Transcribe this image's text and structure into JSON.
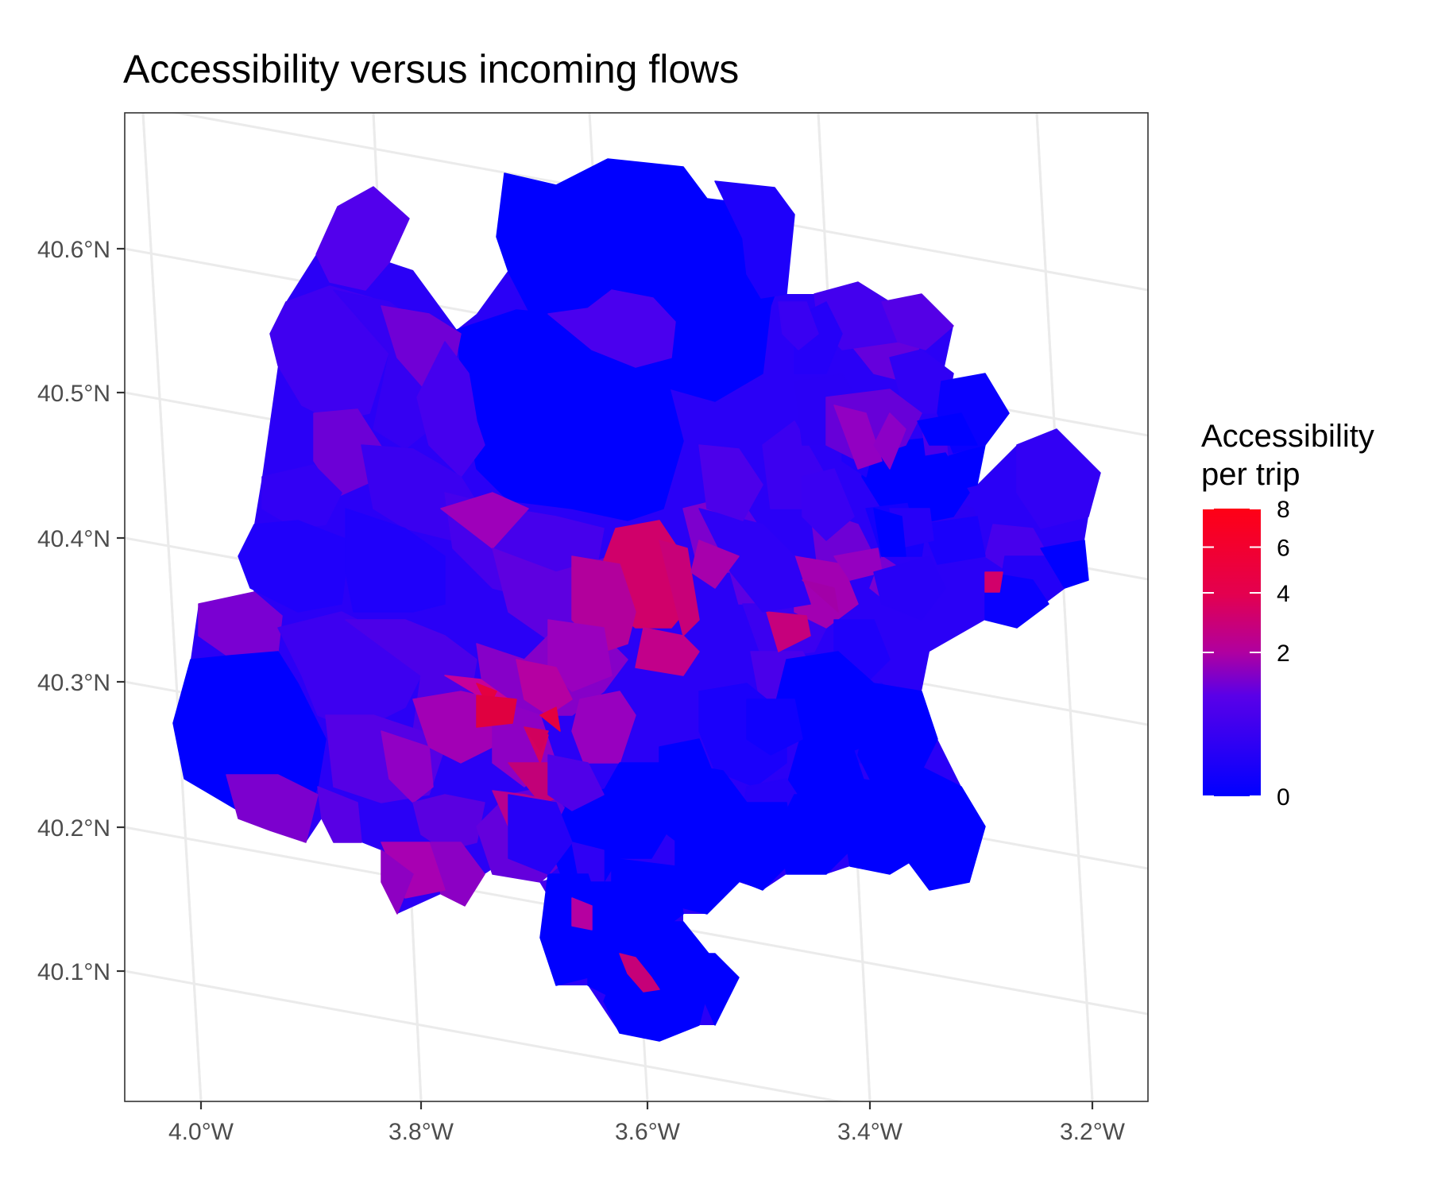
{
  "title": "Accessibility versus incoming flows",
  "colors": {
    "low": "#0000FF",
    "high": "#FF0000",
    "graticule": "#EBEBEB",
    "panel_border": "#333333"
  },
  "axes": {
    "x_ticks": [
      "4.0°W",
      "3.8°W",
      "3.6°W",
      "3.4°W",
      "3.2°W"
    ],
    "y_ticks": [
      "40.6°N",
      "40.5°N",
      "40.4°N",
      "40.3°N",
      "40.2°N",
      "40.1°N"
    ]
  },
  "legend": {
    "title_line1": "Accessibility",
    "title_line2": "per trip",
    "ticks": [
      "8",
      "6",
      "4",
      "2",
      "0"
    ],
    "tick_values": [
      8,
      6,
      4,
      2,
      0
    ],
    "range": [
      0,
      8
    ],
    "scale": "sqrt"
  },
  "chart_data": {
    "type": "choropleth",
    "title": "Accessibility versus incoming flows",
    "fill_variable": "Accessibility per trip",
    "color_scale": {
      "low": "#0000FF",
      "high": "#FF0000",
      "range": [
        0,
        8
      ],
      "breaks": [
        0,
        2,
        4,
        6,
        8
      ]
    },
    "grid": true,
    "legend_position": "right",
    "xlim_deg": [
      -4.07,
      -3.15
    ],
    "ylim_deg": [
      40.01,
      40.7
    ]
  }
}
